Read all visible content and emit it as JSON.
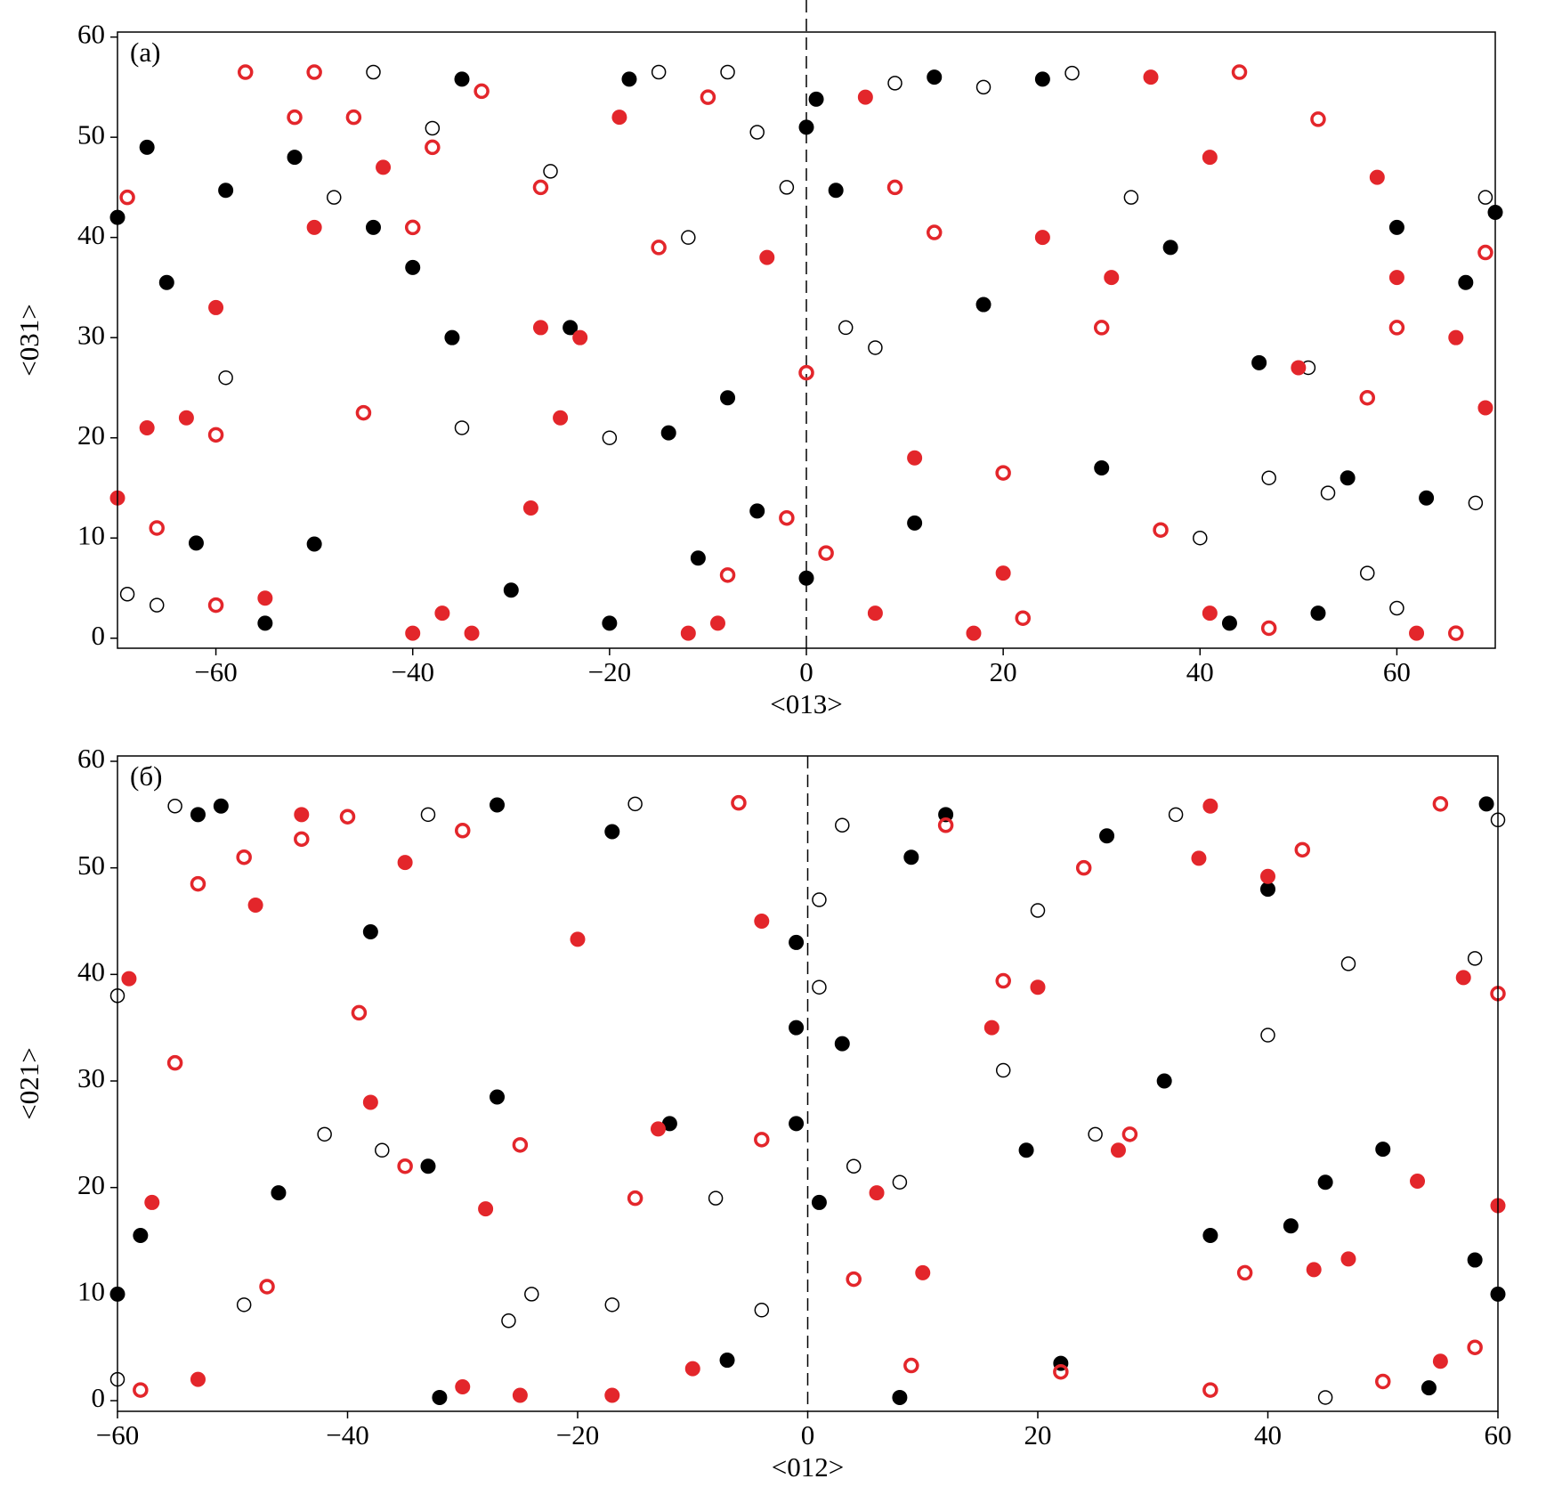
{
  "chart_data": [
    {
      "type": "scatter",
      "panel_label": "(a)",
      "xlabel": "<013>",
      "ylabel": "<031>",
      "xlim": [
        -70,
        70
      ],
      "ylim": [
        -1,
        60.5
      ],
      "vline": 0,
      "xticks": [
        {
          "value": -60,
          "label": "−60"
        },
        {
          "value": -40,
          "label": "−40"
        },
        {
          "value": -20,
          "label": "−20"
        },
        0,
        20,
        40,
        60
      ],
      "yticks": [
        0,
        10,
        20,
        30,
        40,
        50,
        60
      ],
      "series": [
        {
          "color": "#000000",
          "marker": "filled",
          "x": [
            -70,
            -67,
            -65,
            -62,
            -59,
            -55,
            -52,
            -50,
            -44,
            -40,
            -35,
            -36,
            -30,
            -20,
            -18,
            -11,
            -5,
            0,
            1,
            0,
            3,
            11,
            13,
            18,
            24,
            30,
            37,
            43,
            46,
            52,
            60,
            67,
            70,
            63,
            55,
            -14,
            -24,
            -8
          ],
          "values": [
            42,
            49,
            35.5,
            9.5,
            44.7,
            1.5,
            48,
            9.4,
            41,
            37,
            55.8,
            30,
            4.8,
            1.5,
            55.8,
            8,
            12.7,
            51,
            53.8,
            6,
            44.7,
            11.5,
            56,
            33.3,
            55.8,
            17,
            39,
            1.5,
            27.5,
            2.5,
            41,
            35.5,
            42.5,
            14,
            16,
            20.5,
            31,
            24
          ]
        },
        {
          "color": "#000000",
          "marker": "open",
          "x": [
            -69,
            -66,
            -59,
            -44,
            -38,
            -26,
            -15,
            -8,
            -5,
            -20,
            -2,
            4,
            7,
            9,
            18,
            27,
            33,
            40,
            47,
            51,
            53,
            57,
            60,
            68,
            69,
            -35,
            -12,
            -48
          ],
          "values": [
            4.4,
            3.3,
            26,
            56.5,
            50.9,
            46.6,
            56.5,
            56.5,
            50.5,
            20,
            45,
            31,
            29,
            55.4,
            55,
            56.4,
            44,
            10,
            16,
            27,
            14.5,
            6.5,
            3,
            13.5,
            44,
            21,
            40,
            44
          ]
        },
        {
          "color": "#e3262b",
          "marker": "filled",
          "x": [
            -70,
            -67,
            -63,
            -60,
            -55,
            -50,
            -43,
            -40,
            -37,
            -34,
            -27,
            -25,
            -23,
            -12,
            -9,
            -4,
            6,
            7,
            11,
            17,
            20,
            24,
            31,
            35,
            41,
            41,
            50,
            60,
            62,
            66,
            69,
            58,
            -19,
            -28
          ],
          "values": [
            14,
            21,
            22,
            33,
            4,
            41,
            47,
            0.5,
            2.5,
            0.5,
            31,
            22,
            30,
            0.5,
            1.5,
            38,
            54,
            2.5,
            18,
            0.5,
            6.5,
            40,
            36,
            56,
            2.5,
            48,
            27,
            36,
            0.5,
            30,
            23,
            46,
            52,
            13
          ]
        },
        {
          "color": "#e3262b",
          "marker": "open-thick",
          "x": [
            -69,
            -66,
            -60,
            -57,
            -52,
            -50,
            -46,
            -40,
            -38,
            -33,
            -27,
            -15,
            -10,
            -8,
            -2,
            0,
            2,
            9,
            13,
            20,
            22,
            30,
            36,
            44,
            47,
            52,
            60,
            66,
            69,
            57,
            -60,
            -45
          ],
          "values": [
            44,
            11,
            3.3,
            56.5,
            52,
            56.5,
            52,
            41,
            49,
            54.6,
            45,
            39,
            54,
            6.3,
            12,
            26.5,
            8.5,
            45,
            40.5,
            16.5,
            2,
            31,
            10.8,
            56.5,
            1,
            51.8,
            31,
            0.5,
            38.5,
            24,
            20.3,
            22.5
          ]
        }
      ]
    },
    {
      "type": "scatter",
      "panel_label": "(б)",
      "xlabel": "<012>",
      "ylabel": "<021>",
      "xlim": [
        -60,
        60
      ],
      "ylim": [
        -1,
        60.5
      ],
      "vline": 0,
      "xticks": [
        {
          "value": -60,
          "label": "−60"
        },
        {
          "value": -40,
          "label": "−40"
        },
        {
          "value": -20,
          "label": "−20"
        },
        0,
        20,
        40,
        60
      ],
      "yticks": [
        0,
        10,
        20,
        30,
        40,
        50,
        60
      ],
      "series": [
        {
          "color": "#000000",
          "marker": "filled",
          "x": [
            -60,
            -58,
            -53,
            -51,
            -46,
            -38,
            -32,
            -27,
            -27,
            -17,
            -12,
            -7,
            -1,
            -1,
            -1,
            3,
            8,
            9,
            12,
            19,
            22,
            26,
            31,
            35,
            42,
            45,
            50,
            54,
            58,
            59,
            60,
            40,
            -33,
            1
          ],
          "values": [
            10,
            15.5,
            55,
            55.8,
            19.5,
            44,
            0.3,
            55.9,
            28.5,
            53.4,
            26,
            3.8,
            43,
            35,
            26,
            33.5,
            0.3,
            51,
            55,
            23.5,
            3.5,
            53,
            30,
            15.5,
            16.4,
            20.5,
            23.6,
            1.2,
            13.2,
            56,
            10,
            48,
            22,
            18.6
          ]
        },
        {
          "color": "#000000",
          "marker": "open",
          "x": [
            -60,
            -55,
            -49,
            -42,
            -33,
            -26,
            -17,
            -15,
            -8,
            -4,
            1,
            1,
            3,
            4,
            8,
            17,
            20,
            25,
            32,
            40,
            45,
            47,
            58,
            60,
            -60,
            -37,
            -24
          ],
          "values": [
            38,
            55.8,
            9,
            25,
            55,
            7.5,
            9,
            56,
            19,
            8.5,
            47,
            38.8,
            54,
            22,
            20.5,
            31,
            46,
            25,
            55,
            34.3,
            0.3,
            41,
            41.5,
            54.5,
            2,
            23.5,
            10
          ]
        },
        {
          "color": "#e3262b",
          "marker": "filled",
          "x": [
            -59,
            -57,
            -53,
            -48,
            -44,
            -35,
            -30,
            -28,
            -25,
            -20,
            -17,
            -10,
            -4,
            6,
            10,
            16,
            20,
            27,
            34,
            35,
            40,
            47,
            53,
            55,
            57,
            60,
            44,
            -38,
            -13
          ],
          "values": [
            39.6,
            18.6,
            2,
            46.5,
            55,
            50.5,
            1.3,
            18,
            0.5,
            43.3,
            0.5,
            3,
            45,
            19.5,
            12,
            35,
            38.8,
            23.5,
            50.9,
            55.8,
            49.2,
            13.3,
            20.6,
            3.7,
            39.7,
            18.3,
            12.3,
            28,
            25.5
          ]
        },
        {
          "color": "#e3262b",
          "marker": "open-thick",
          "x": [
            -58,
            -55,
            -53,
            -49,
            -44,
            -40,
            -39,
            -35,
            -30,
            -25,
            -15,
            -6,
            -4,
            4,
            9,
            12,
            17,
            24,
            28,
            35,
            38,
            43,
            50,
            55,
            58,
            60,
            22,
            -47
          ],
          "values": [
            1,
            31.7,
            48.5,
            51,
            52.7,
            54.8,
            36.4,
            22,
            53.5,
            24,
            19,
            56.1,
            24.5,
            11.4,
            3.3,
            54,
            39.4,
            50,
            25,
            1,
            12,
            51.7,
            1.8,
            56,
            5,
            38.2,
            2.7,
            10.7
          ]
        }
      ]
    }
  ]
}
